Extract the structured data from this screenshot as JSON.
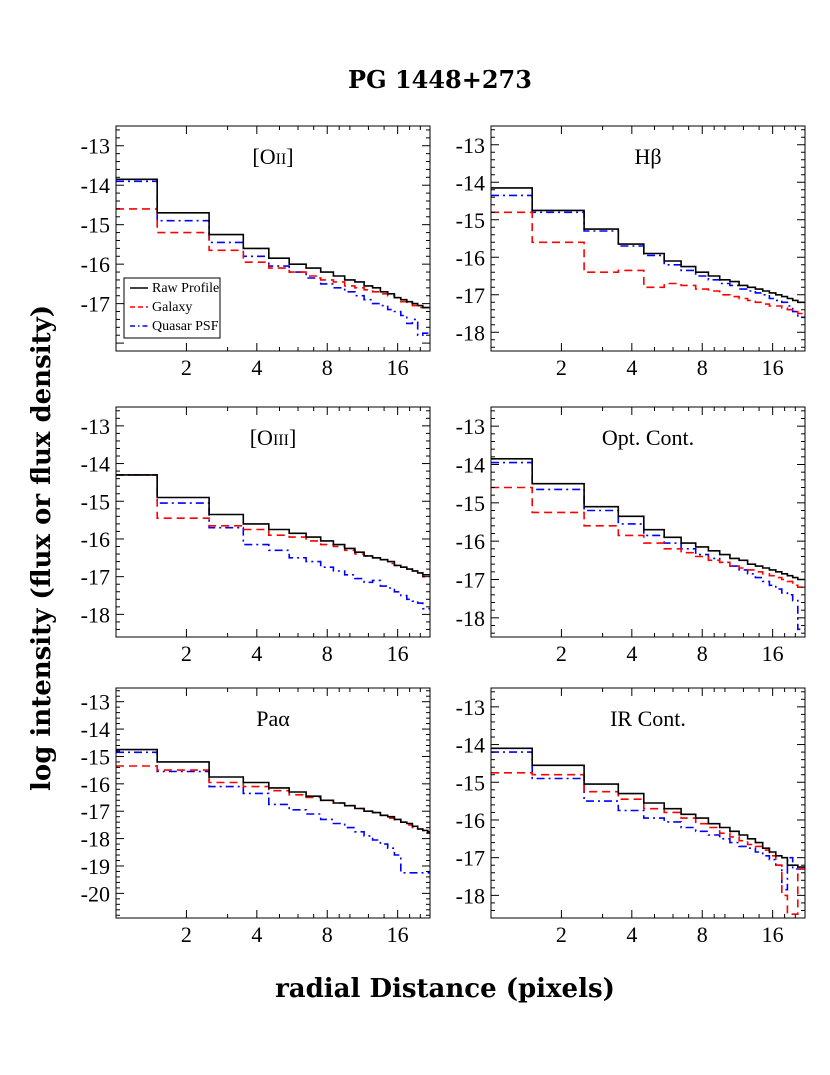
{
  "figure": {
    "title": "PG 1448+273",
    "xlabel": "radial Distance (pixels)",
    "ylabel": "log intensity (flux or flux density)"
  },
  "legend": {
    "entries": [
      {
        "name": "Raw Profile",
        "color": "#000000",
        "dash": "solid"
      },
      {
        "name": "Galaxy",
        "color": "#ff0000",
        "dash": "dashed"
      },
      {
        "name": "Quasar PSF",
        "color": "#0000ff",
        "dash": "dashdot"
      }
    ]
  },
  "colors": {
    "raw": "#000000",
    "galaxy": "#ff0000",
    "psf": "#0000ff"
  },
  "chart_data": [
    {
      "type": "line",
      "label": "[OII]",
      "label_main": "[O",
      "label_sub": "II]",
      "xscale": "log",
      "xlim": [
        1.0,
        22.0
      ],
      "ylim": [
        -18.2,
        -12.5
      ],
      "xticks": [
        2,
        4,
        8,
        16
      ],
      "yticks": [
        -13,
        -14,
        -15,
        -16,
        -17
      ],
      "steps": "post",
      "x": [
        1.0,
        1.5,
        2.5,
        3.5,
        4.5,
        5.5,
        6.5,
        7.5,
        8.5,
        9.5,
        10.5,
        11.5,
        12.5,
        13.5,
        14.5,
        15.5,
        16.5,
        17.5,
        18.5,
        19.5,
        20.5,
        21.5
      ],
      "series": [
        {
          "name": "Raw Profile",
          "values": [
            -13.85,
            -14.7,
            -15.25,
            -15.6,
            -15.85,
            -16.0,
            -16.1,
            -16.2,
            -16.3,
            -16.4,
            -16.45,
            -16.55,
            -16.6,
            -16.7,
            -16.75,
            -16.85,
            -16.9,
            -16.95,
            -17.0,
            -17.05,
            -17.1,
            -17.1
          ]
        },
        {
          "name": "Galaxy",
          "values": [
            -14.6,
            -15.2,
            -15.65,
            -15.95,
            -16.1,
            -16.2,
            -16.3,
            -16.4,
            -16.45,
            -16.55,
            -16.6,
            -16.65,
            -16.7,
            -16.75,
            -16.8,
            -16.85,
            -16.95,
            -17.0,
            -17.05,
            -17.1,
            -17.1,
            -17.1
          ]
        },
        {
          "name": "Quasar PSF",
          "values": [
            -13.9,
            -14.9,
            -15.45,
            -15.8,
            -16.05,
            -16.2,
            -16.35,
            -16.5,
            -16.6,
            -16.7,
            -16.8,
            -16.9,
            -17.0,
            -17.05,
            -17.15,
            -17.2,
            -17.3,
            -17.5,
            -17.4,
            -17.8,
            -17.75,
            -17.8
          ]
        }
      ]
    },
    {
      "type": "line",
      "label": "Hβ",
      "label_main": "Hβ",
      "label_sub": "",
      "xscale": "log",
      "xlim": [
        1.0,
        22.0
      ],
      "ylim": [
        -18.5,
        -12.5
      ],
      "xticks": [
        2,
        4,
        8,
        16
      ],
      "yticks": [
        -13,
        -14,
        -15,
        -16,
        -17,
        -18
      ],
      "steps": "post",
      "x": [
        1.0,
        1.5,
        2.5,
        3.5,
        4.5,
        5.5,
        6.5,
        7.5,
        8.5,
        9.5,
        10.5,
        11.5,
        12.5,
        13.5,
        14.5,
        15.5,
        16.5,
        17.5,
        18.5,
        19.5,
        20.5,
        21.5
      ],
      "series": [
        {
          "name": "Raw Profile",
          "values": [
            -14.15,
            -14.75,
            -15.25,
            -15.65,
            -15.9,
            -16.1,
            -16.25,
            -16.4,
            -16.5,
            -16.6,
            -16.65,
            -16.75,
            -16.8,
            -16.85,
            -16.9,
            -16.95,
            -17.0,
            -17.05,
            -17.1,
            -17.15,
            -17.2,
            -17.2
          ]
        },
        {
          "name": "Galaxy",
          "values": [
            -14.8,
            -15.6,
            -16.4,
            -16.35,
            -16.8,
            -16.7,
            -16.75,
            -16.85,
            -16.9,
            -17.0,
            -17.05,
            -17.1,
            -17.15,
            -17.2,
            -17.25,
            -17.3,
            -17.3,
            -17.35,
            -17.4,
            -17.45,
            -17.5,
            -17.5
          ]
        },
        {
          "name": "Quasar PSF",
          "values": [
            -14.35,
            -14.8,
            -15.3,
            -15.7,
            -15.95,
            -16.2,
            -16.35,
            -16.5,
            -16.6,
            -16.7,
            -16.75,
            -16.85,
            -16.9,
            -16.95,
            -17.0,
            -17.1,
            -17.15,
            -17.2,
            -17.3,
            -17.45,
            -17.6,
            -17.6
          ]
        }
      ]
    },
    {
      "type": "line",
      "label": "[OIII]",
      "label_main": "[O",
      "label_sub": "III]",
      "xscale": "log",
      "xlim": [
        1.0,
        22.0
      ],
      "ylim": [
        -18.6,
        -12.5
      ],
      "xticks": [
        2,
        4,
        8,
        16
      ],
      "yticks": [
        -13,
        -14,
        -15,
        -16,
        -17,
        -18
      ],
      "steps": "post",
      "x": [
        1.0,
        1.5,
        2.5,
        3.5,
        4.5,
        5.5,
        6.5,
        7.5,
        8.5,
        9.5,
        10.5,
        11.5,
        12.5,
        13.5,
        14.5,
        15.5,
        16.5,
        17.5,
        18.5,
        19.5,
        20.5,
        21.5
      ],
      "series": [
        {
          "name": "Raw Profile",
          "values": [
            -14.3,
            -14.9,
            -15.35,
            -15.6,
            -15.75,
            -15.85,
            -15.95,
            -16.05,
            -16.15,
            -16.25,
            -16.35,
            -16.45,
            -16.5,
            -16.55,
            -16.6,
            -16.7,
            -16.75,
            -16.8,
            -16.85,
            -16.9,
            -16.95,
            -16.95
          ]
        },
        {
          "name": "Galaxy",
          "values": [
            -14.3,
            -15.45,
            -15.65,
            -15.75,
            -15.9,
            -15.95,
            -16.05,
            -16.15,
            -16.2,
            -16.3,
            -16.4,
            -16.45,
            -16.5,
            -16.55,
            -16.65,
            -16.7,
            -16.75,
            -16.8,
            -16.85,
            -16.9,
            -17.0,
            -17.0
          ]
        },
        {
          "name": "Quasar PSF",
          "values": [
            -14.3,
            -15.05,
            -15.7,
            -16.15,
            -16.3,
            -16.5,
            -16.6,
            -16.75,
            -16.85,
            -16.95,
            -17.05,
            -17.15,
            -17.1,
            -17.25,
            -17.3,
            -17.4,
            -17.5,
            -17.6,
            -17.65,
            -17.7,
            -17.85,
            -17.85
          ]
        }
      ]
    },
    {
      "type": "line",
      "label": "Opt. Cont.",
      "label_main": "Opt. Cont.",
      "label_sub": "",
      "xscale": "log",
      "xlim": [
        1.0,
        22.0
      ],
      "ylim": [
        -18.5,
        -12.5
      ],
      "xticks": [
        2,
        4,
        8,
        16
      ],
      "yticks": [
        -13,
        -14,
        -15,
        -16,
        -17,
        -18
      ],
      "steps": "post",
      "x": [
        1.0,
        1.5,
        2.5,
        3.5,
        4.5,
        5.5,
        6.5,
        7.5,
        8.5,
        9.5,
        10.5,
        11.5,
        12.5,
        13.5,
        14.5,
        15.5,
        16.5,
        17.5,
        18.5,
        19.5,
        20.5,
        21.5
      ],
      "series": [
        {
          "name": "Raw Profile",
          "values": [
            -13.85,
            -14.5,
            -15.1,
            -15.35,
            -15.7,
            -15.9,
            -16.05,
            -16.15,
            -16.25,
            -16.35,
            -16.45,
            -16.5,
            -16.6,
            -16.65,
            -16.7,
            -16.75,
            -16.8,
            -16.85,
            -16.9,
            -16.95,
            -17.0,
            -17.0
          ]
        },
        {
          "name": "Galaxy",
          "values": [
            -14.6,
            -15.25,
            -15.6,
            -15.85,
            -16.05,
            -16.2,
            -16.3,
            -16.4,
            -16.5,
            -16.55,
            -16.65,
            -16.7,
            -16.75,
            -16.8,
            -16.85,
            -16.9,
            -16.95,
            -17.0,
            -17.05,
            -17.15,
            -17.2,
            -17.2
          ]
        },
        {
          "name": "Quasar PSF",
          "values": [
            -13.95,
            -14.65,
            -15.2,
            -15.55,
            -15.85,
            -16.05,
            -16.2,
            -16.35,
            -16.45,
            -16.55,
            -16.65,
            -16.75,
            -16.85,
            -16.95,
            -17.05,
            -17.15,
            -17.25,
            -17.35,
            -17.4,
            -17.55,
            -18.3,
            -18.3
          ]
        }
      ]
    },
    {
      "type": "line",
      "label": "Paα",
      "label_main": "Paα",
      "label_sub": "",
      "xscale": "log",
      "xlim": [
        1.0,
        22.0
      ],
      "ylim": [
        -20.9,
        -12.5
      ],
      "xticks": [
        2,
        4,
        8,
        16
      ],
      "yticks": [
        -13,
        -14,
        -15,
        -16,
        -17,
        -18,
        -19,
        -20
      ],
      "steps": "post",
      "x": [
        1.0,
        1.5,
        2.5,
        3.5,
        4.5,
        5.5,
        6.5,
        7.5,
        8.5,
        9.5,
        10.5,
        11.5,
        12.5,
        13.5,
        14.5,
        15.5,
        16.5,
        17.5,
        18.5,
        19.5,
        20.5,
        21.5
      ],
      "series": [
        {
          "name": "Raw Profile",
          "values": [
            -14.75,
            -15.2,
            -15.75,
            -15.95,
            -16.15,
            -16.3,
            -16.45,
            -16.6,
            -16.7,
            -16.8,
            -16.9,
            -17.0,
            -17.05,
            -17.15,
            -17.2,
            -17.3,
            -17.4,
            -17.45,
            -17.55,
            -17.65,
            -17.7,
            -17.75
          ]
        },
        {
          "name": "Galaxy",
          "values": [
            -15.35,
            -15.5,
            -15.95,
            -16.1,
            -16.25,
            -16.4,
            -16.5,
            -16.6,
            -16.7,
            -16.8,
            -16.9,
            -17.0,
            -17.05,
            -17.15,
            -17.25,
            -17.3,
            -17.4,
            -17.5,
            -17.6,
            -17.65,
            -17.75,
            -17.8
          ]
        },
        {
          "name": "Quasar PSF",
          "values": [
            -14.85,
            -15.55,
            -16.1,
            -16.35,
            -16.75,
            -16.95,
            -17.1,
            -17.3,
            -17.45,
            -17.6,
            -17.75,
            -17.9,
            -18.05,
            -18.2,
            -18.35,
            -18.6,
            -19.25,
            -19.25,
            -19.25,
            -19.25,
            -19.25,
            -19.25
          ]
        }
      ]
    },
    {
      "type": "line",
      "label": "IR Cont.",
      "label_main": "IR Cont.",
      "label_sub": "",
      "xscale": "log",
      "xlim": [
        1.0,
        22.0
      ],
      "ylim": [
        -18.6,
        -12.5
      ],
      "xticks": [
        2,
        4,
        8,
        16
      ],
      "yticks": [
        -13,
        -14,
        -15,
        -16,
        -17,
        -18
      ],
      "steps": "post",
      "x": [
        1.0,
        1.5,
        2.5,
        3.5,
        4.5,
        5.5,
        6.5,
        7.5,
        8.5,
        9.5,
        10.5,
        11.5,
        12.5,
        13.5,
        14.5,
        15.5,
        16.5,
        17.5,
        18.5,
        19.5,
        20.5,
        21.5
      ],
      "series": [
        {
          "name": "Raw Profile",
          "values": [
            -14.1,
            -14.55,
            -15.05,
            -15.3,
            -15.55,
            -15.7,
            -15.85,
            -15.95,
            -16.1,
            -16.2,
            -16.3,
            -16.4,
            -16.5,
            -16.6,
            -16.75,
            -16.85,
            -16.95,
            -17.0,
            -17.2,
            -17.2,
            -17.25,
            -17.25
          ]
        },
        {
          "name": "Galaxy",
          "values": [
            -14.75,
            -14.8,
            -15.25,
            -15.45,
            -15.7,
            -15.8,
            -15.95,
            -16.1,
            -16.2,
            -16.35,
            -16.45,
            -16.55,
            -16.65,
            -16.7,
            -16.8,
            -16.95,
            -17.2,
            -18.0,
            -18.5,
            -18.5,
            -17.3,
            -17.3
          ]
        },
        {
          "name": "Quasar PSF",
          "values": [
            -14.2,
            -14.9,
            -15.5,
            -15.75,
            -15.95,
            -16.05,
            -16.2,
            -16.3,
            -16.4,
            -16.5,
            -16.6,
            -16.7,
            -16.75,
            -16.85,
            -16.95,
            -17.05,
            -17.2,
            -17.85,
            -17.0,
            -17.3,
            -17.3,
            -17.3
          ]
        }
      ]
    }
  ]
}
